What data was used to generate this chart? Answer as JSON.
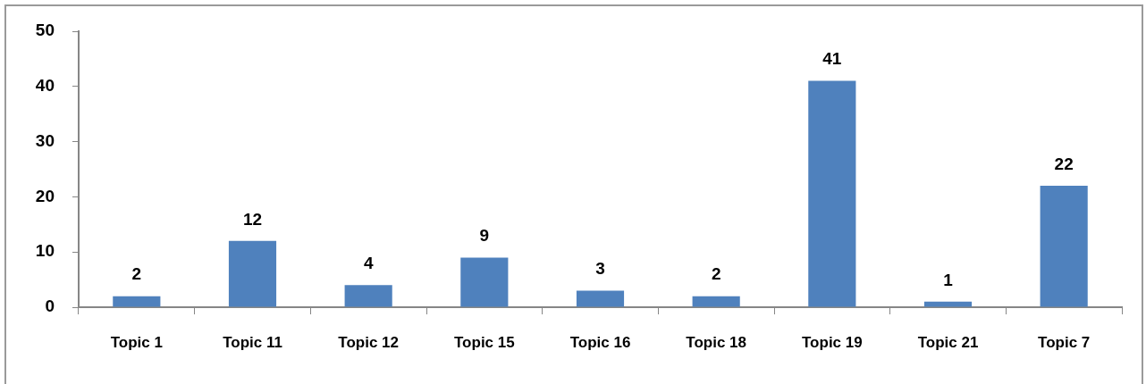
{
  "chart_data": {
    "type": "bar",
    "categories": [
      "Topic 1",
      "Topic 11",
      "Topic 12",
      "Topic 15",
      "Topic 16",
      "Topic 18",
      "Topic 19",
      "Topic 21",
      "Topic 7"
    ],
    "values": [
      2,
      12,
      4,
      9,
      3,
      2,
      41,
      1,
      22
    ],
    "color": "#4f81bd",
    "ylim": [
      0,
      50
    ],
    "yticks": [
      0,
      10,
      20,
      30,
      40,
      50
    ],
    "grid": false,
    "data_labels": true
  }
}
